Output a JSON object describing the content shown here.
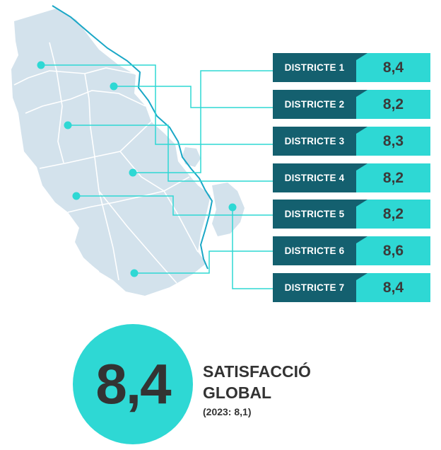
{
  "districts": [
    {
      "label": "DISTRICTE 1",
      "value": "8,4"
    },
    {
      "label": "DISTRICTE 2",
      "value": "8,2"
    },
    {
      "label": "DISTRICTE 3",
      "value": "8,3"
    },
    {
      "label": "DISTRICTE 4",
      "value": "8,2"
    },
    {
      "label": "DISTRICTE 5",
      "value": "8,2"
    },
    {
      "label": "DISTRICTE 6",
      "value": "8,6"
    },
    {
      "label": "DISTRICTE 7",
      "value": "8,4"
    }
  ],
  "global": {
    "value": "8,4",
    "title_line1": "SATISFACCIÓ",
    "title_line2": "GLOBAL",
    "previous": "(2023: 8,1)"
  },
  "colors": {
    "map_fill": "#d3e2ec",
    "map_lines": "#ffffff",
    "river": "#1aa7c6",
    "leader": "#2ed8d4",
    "label_bg": "#14606f",
    "value_bg": "#2ed8d4"
  }
}
